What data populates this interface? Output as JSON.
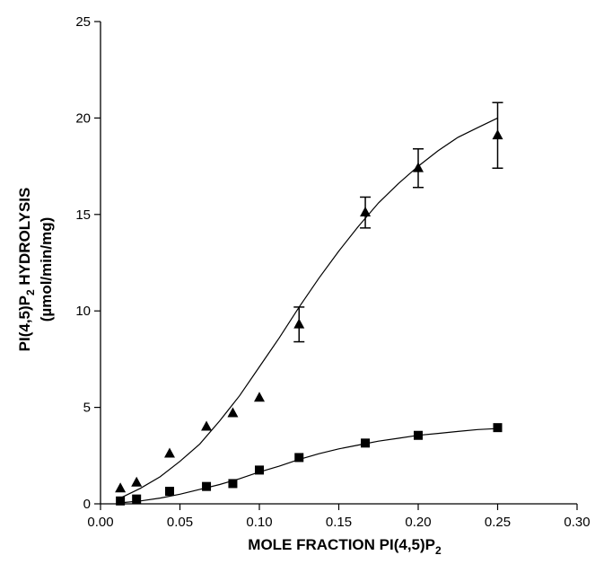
{
  "chart_data": {
    "type": "scatter",
    "title": "",
    "xlabel": "MOLE FRACTION PI(4,5)P",
    "xlabel_subscript": "2",
    "ylabel_line1": "PI(4,5)P",
    "ylabel_line1_subscript": "2",
    "ylabel_line1_suffix": " HYDROLYSIS",
    "ylabel_line2": "(µmol/min/mg)",
    "xlim": [
      0.0,
      0.3
    ],
    "ylim": [
      0,
      25
    ],
    "xticks": [
      "0.00",
      "0.05",
      "0.10",
      "0.15",
      "0.20",
      "0.25",
      "0.30"
    ],
    "yticks": [
      "0",
      "5",
      "10",
      "15",
      "20",
      "25"
    ],
    "grid": false,
    "legend": "none",
    "series": [
      {
        "marker": "triangle",
        "x": [
          0.0125,
          0.0227,
          0.0435,
          0.0667,
          0.0833,
          0.1,
          0.125,
          0.1667,
          0.2,
          0.25
        ],
        "y": [
          0.8,
          1.1,
          2.6,
          4.0,
          4.7,
          5.5,
          9.3,
          15.1,
          17.4,
          19.1
        ],
        "error": [
          0,
          0,
          0,
          0,
          0,
          0,
          0.9,
          0.8,
          1.0,
          1.7
        ],
        "fit_x": [
          0.0125,
          0.025,
          0.0375,
          0.05,
          0.0625,
          0.075,
          0.0875,
          0.1,
          0.1125,
          0.125,
          0.1375,
          0.15,
          0.1625,
          0.175,
          0.1875,
          0.2,
          0.2125,
          0.225,
          0.2375,
          0.25
        ],
        "fit_y": [
          0.3,
          0.8,
          1.4,
          2.2,
          3.1,
          4.3,
          5.6,
          7.1,
          8.6,
          10.2,
          11.7,
          13.1,
          14.4,
          15.6,
          16.6,
          17.5,
          18.3,
          19.0,
          19.5,
          20.0
        ]
      },
      {
        "marker": "square",
        "x": [
          0.0125,
          0.0227,
          0.0435,
          0.0667,
          0.0833,
          0.1,
          0.125,
          0.1667,
          0.2,
          0.25
        ],
        "y": [
          0.15,
          0.25,
          0.65,
          0.9,
          1.05,
          1.75,
          2.4,
          3.15,
          3.55,
          3.95
        ],
        "error": [
          0,
          0,
          0,
          0,
          0,
          0,
          0,
          0,
          0,
          0
        ],
        "fit_x": [
          0.0125,
          0.025,
          0.0375,
          0.05,
          0.0625,
          0.075,
          0.0875,
          0.1,
          0.1125,
          0.125,
          0.1375,
          0.15,
          0.1625,
          0.175,
          0.1875,
          0.2,
          0.2125,
          0.225,
          0.2375,
          0.25
        ],
        "fit_y": [
          0.05,
          0.15,
          0.3,
          0.5,
          0.75,
          1.0,
          1.3,
          1.65,
          1.95,
          2.3,
          2.6,
          2.85,
          3.05,
          3.25,
          3.4,
          3.55,
          3.65,
          3.75,
          3.85,
          3.9
        ]
      }
    ]
  }
}
